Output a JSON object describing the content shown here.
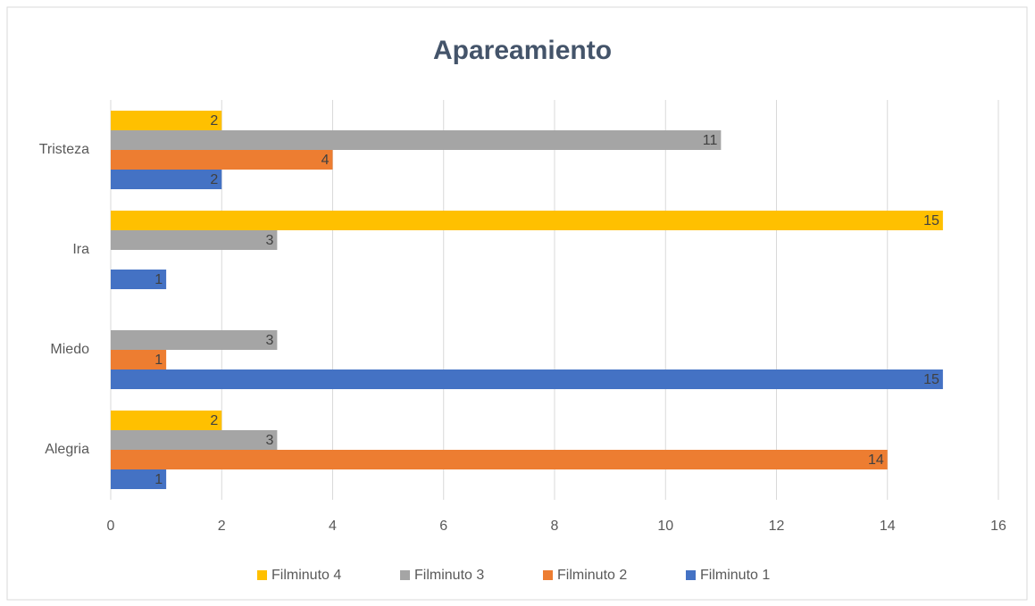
{
  "chart_data": {
    "type": "hbar",
    "title": "Apareamiento",
    "categories": [
      "Alegria",
      "Miedo",
      "Ira",
      "Tristeza"
    ],
    "series": [
      {
        "name": "Filminuto 1",
        "color": "#4472c4",
        "values": [
          1,
          15,
          1,
          2
        ]
      },
      {
        "name": "Filminuto 2",
        "color": "#ed7d31",
        "values": [
          14,
          1,
          null,
          4
        ]
      },
      {
        "name": "Filminuto 3",
        "color": "#a5a5a5",
        "values": [
          3,
          3,
          3,
          11
        ]
      },
      {
        "name": "Filminuto 4",
        "color": "#ffc000",
        "values": [
          2,
          null,
          15,
          2
        ]
      }
    ],
    "xlim": [
      0,
      16
    ],
    "xticks": [
      0,
      2,
      4,
      6,
      8,
      10,
      12,
      14,
      16
    ],
    "grid": true,
    "legend": "bottom"
  }
}
